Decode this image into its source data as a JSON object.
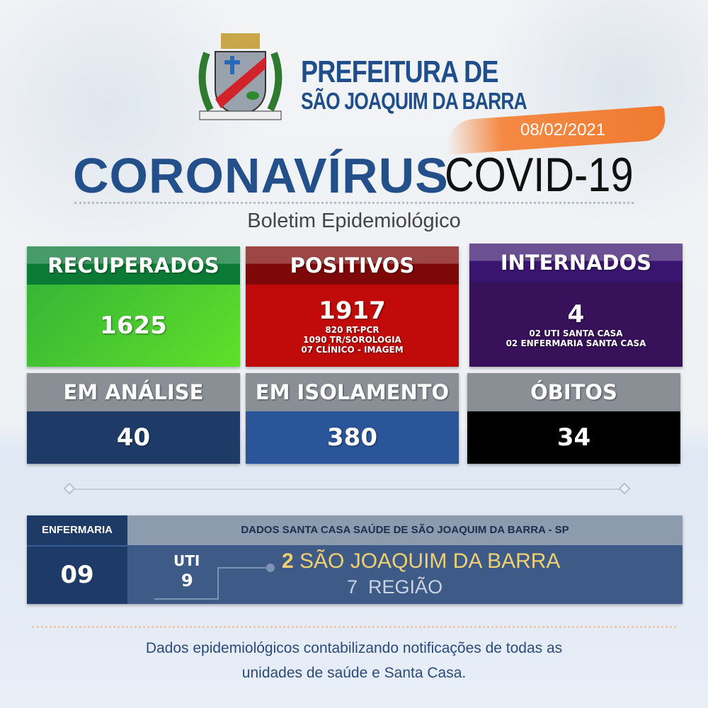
{
  "header": {
    "org_line1": "PREFEITURA DE",
    "org_line2": "SÃO JOAQUIM DA BARRA",
    "date": "08/02/2021",
    "title_bold": "CORONAVÍRUS",
    "title_light": "COVID-19",
    "subtitle": "Boletim Epidemiológico"
  },
  "cards": [
    {
      "label": "RECUPERADOS",
      "value": "1625",
      "details": [],
      "colors": {
        "header": "#0a7a34",
        "body": "#46c832"
      }
    },
    {
      "label": "POSITIVOS",
      "value": "1917",
      "details": [
        "820 RT-PCR",
        "1090 TR/SOROLOGIA",
        "07 CLÍNICO - IMAGEM"
      ],
      "colors": {
        "header": "#7e0808",
        "body": "#c10a0a"
      }
    },
    {
      "label": "INTERNADOS",
      "value": "4",
      "details": [
        "02 UTI SANTA CASA",
        "02 ENFERMARIA SANTA CASA"
      ],
      "colors": {
        "header": "#3a1570",
        "body": "#37115a"
      }
    },
    {
      "label": "EM ANÁLISE",
      "value": "40",
      "colors": {
        "header": "#8a8f96",
        "body": "#1e3a66"
      }
    },
    {
      "label": "EM ISOLAMENTO",
      "value": "380",
      "colors": {
        "header": "#8a8f96",
        "body": "#2a5599"
      }
    },
    {
      "label": "ÓBITOS",
      "value": "34",
      "colors": {
        "header": "#8a8f96",
        "body": "#000000"
      }
    }
  ],
  "santa_casa": {
    "enfermaria_label": "ENFERMARIA",
    "enfermaria_value": "09",
    "title": "DADOS SANTA CASA SAÚDE DE SÃO JOAQUIM DA BARRA - SP",
    "uti_label": "UTI",
    "uti_value": "9",
    "local_count": "2",
    "local_label": "SÃO JOAQUIM DA BARRA",
    "region_count": "7",
    "region_label": "REGIÃO"
  },
  "footer": {
    "line1": "Dados epidemiológicos contabilizando notificações de todas as",
    "line2": "unidades de saúde e Santa Casa."
  }
}
